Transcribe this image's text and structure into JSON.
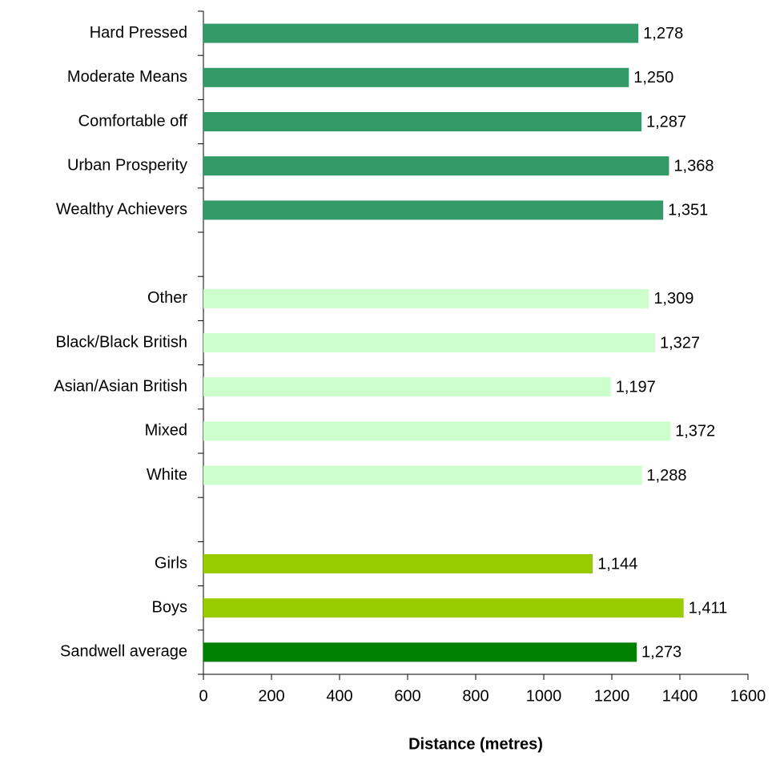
{
  "chart_data": {
    "type": "barh",
    "categories": [
      "Hard Pressed",
      "Moderate Means",
      "Comfortable off",
      "Urban Prosperity",
      "Wealthy Achievers",
      null,
      "Other",
      "Black/Black British",
      "Asian/Asian British",
      "Mixed",
      "White",
      null,
      "Girls",
      "Boys",
      "Sandwell average"
    ],
    "values": [
      1278,
      1250,
      1287,
      1368,
      1351,
      null,
      1309,
      1327,
      1197,
      1372,
      1288,
      null,
      1144,
      1411,
      1273
    ],
    "value_labels": [
      "1,278",
      "1,250",
      "1,287",
      "1,368",
      "1,351",
      null,
      "1,309",
      "1,327",
      "1,197",
      "1,372",
      "1,288",
      null,
      "1,144",
      "1,411",
      "1,273"
    ],
    "colors": [
      "#339966",
      "#339966",
      "#339966",
      "#339966",
      "#339966",
      null,
      "#ccffcc",
      "#ccffcc",
      "#ccffcc",
      "#ccffcc",
      "#ccffcc",
      null,
      "#99cc00",
      "#99cc00",
      "#008000"
    ],
    "x_label": "Distance (metres)",
    "xlim": [
      0,
      1600
    ],
    "xticks": [
      0,
      200,
      400,
      600,
      800,
      1000,
      1200,
      1400,
      1600
    ]
  }
}
